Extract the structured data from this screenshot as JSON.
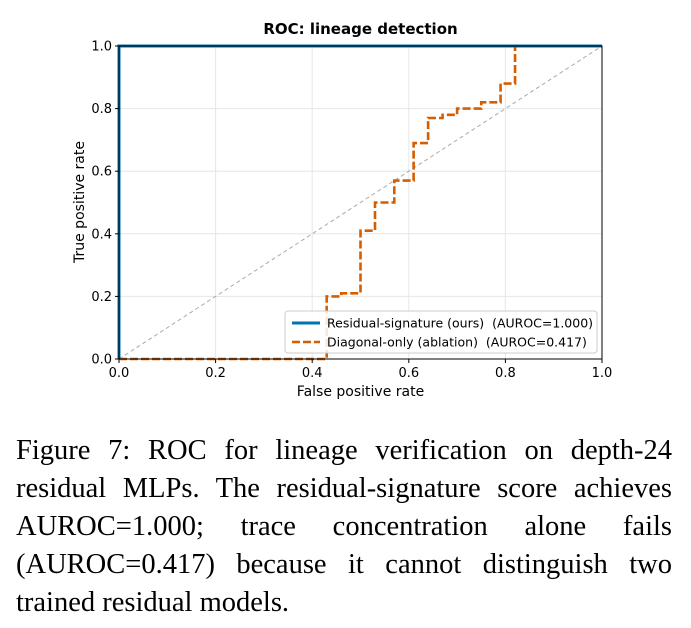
{
  "chart_data": {
    "type": "line",
    "title": "ROC: lineage detection",
    "xlabel": "False positive rate",
    "ylabel": "True positive rate",
    "xlim": [
      0.0,
      1.0
    ],
    "ylim": [
      0.0,
      1.0
    ],
    "xticks": [
      "0.0",
      "0.2",
      "0.4",
      "0.6",
      "0.8",
      "1.0"
    ],
    "yticks": [
      "0.0",
      "0.2",
      "0.4",
      "0.6",
      "0.8",
      "1.0"
    ],
    "grid": true,
    "legend_position": "lower right",
    "series": [
      {
        "name": "Residual-signature (ours)  (AUROC=1.000)",
        "style": "solid",
        "color": "#0072b2",
        "x": [
          0.0,
          0.0,
          1.0
        ],
        "y": [
          0.0,
          1.0,
          1.0
        ]
      },
      {
        "name": "Diagonal-only (ablation)  (AUROC=0.417)",
        "style": "dashed",
        "color": "#d55e00",
        "x": [
          0.0,
          0.43,
          0.43,
          0.46,
          0.46,
          0.5,
          0.5,
          0.53,
          0.53,
          0.57,
          0.57,
          0.61,
          0.61,
          0.64,
          0.64,
          0.67,
          0.67,
          0.7,
          0.7,
          0.75,
          0.75,
          0.79,
          0.79,
          0.82,
          0.82,
          1.0
        ],
        "y": [
          0.0,
          0.0,
          0.2,
          0.2,
          0.21,
          0.21,
          0.41,
          0.41,
          0.5,
          0.5,
          0.57,
          0.57,
          0.69,
          0.69,
          0.77,
          0.77,
          0.78,
          0.78,
          0.8,
          0.8,
          0.82,
          0.82,
          0.88,
          0.88,
          1.0,
          1.0
        ]
      },
      {
        "style": "dashed",
        "color": "#aaaaaa",
        "x": [
          0.0,
          1.0
        ],
        "y": [
          0.0,
          1.0
        ]
      }
    ]
  },
  "caption": "Figure 7:  ROC for lineage verification on depth-24 residual MLPs.  The residual-signature score achieves AUROC=1.000; trace concentration alone fails (AUROC=0.417) because it cannot distinguish two trained residual models."
}
